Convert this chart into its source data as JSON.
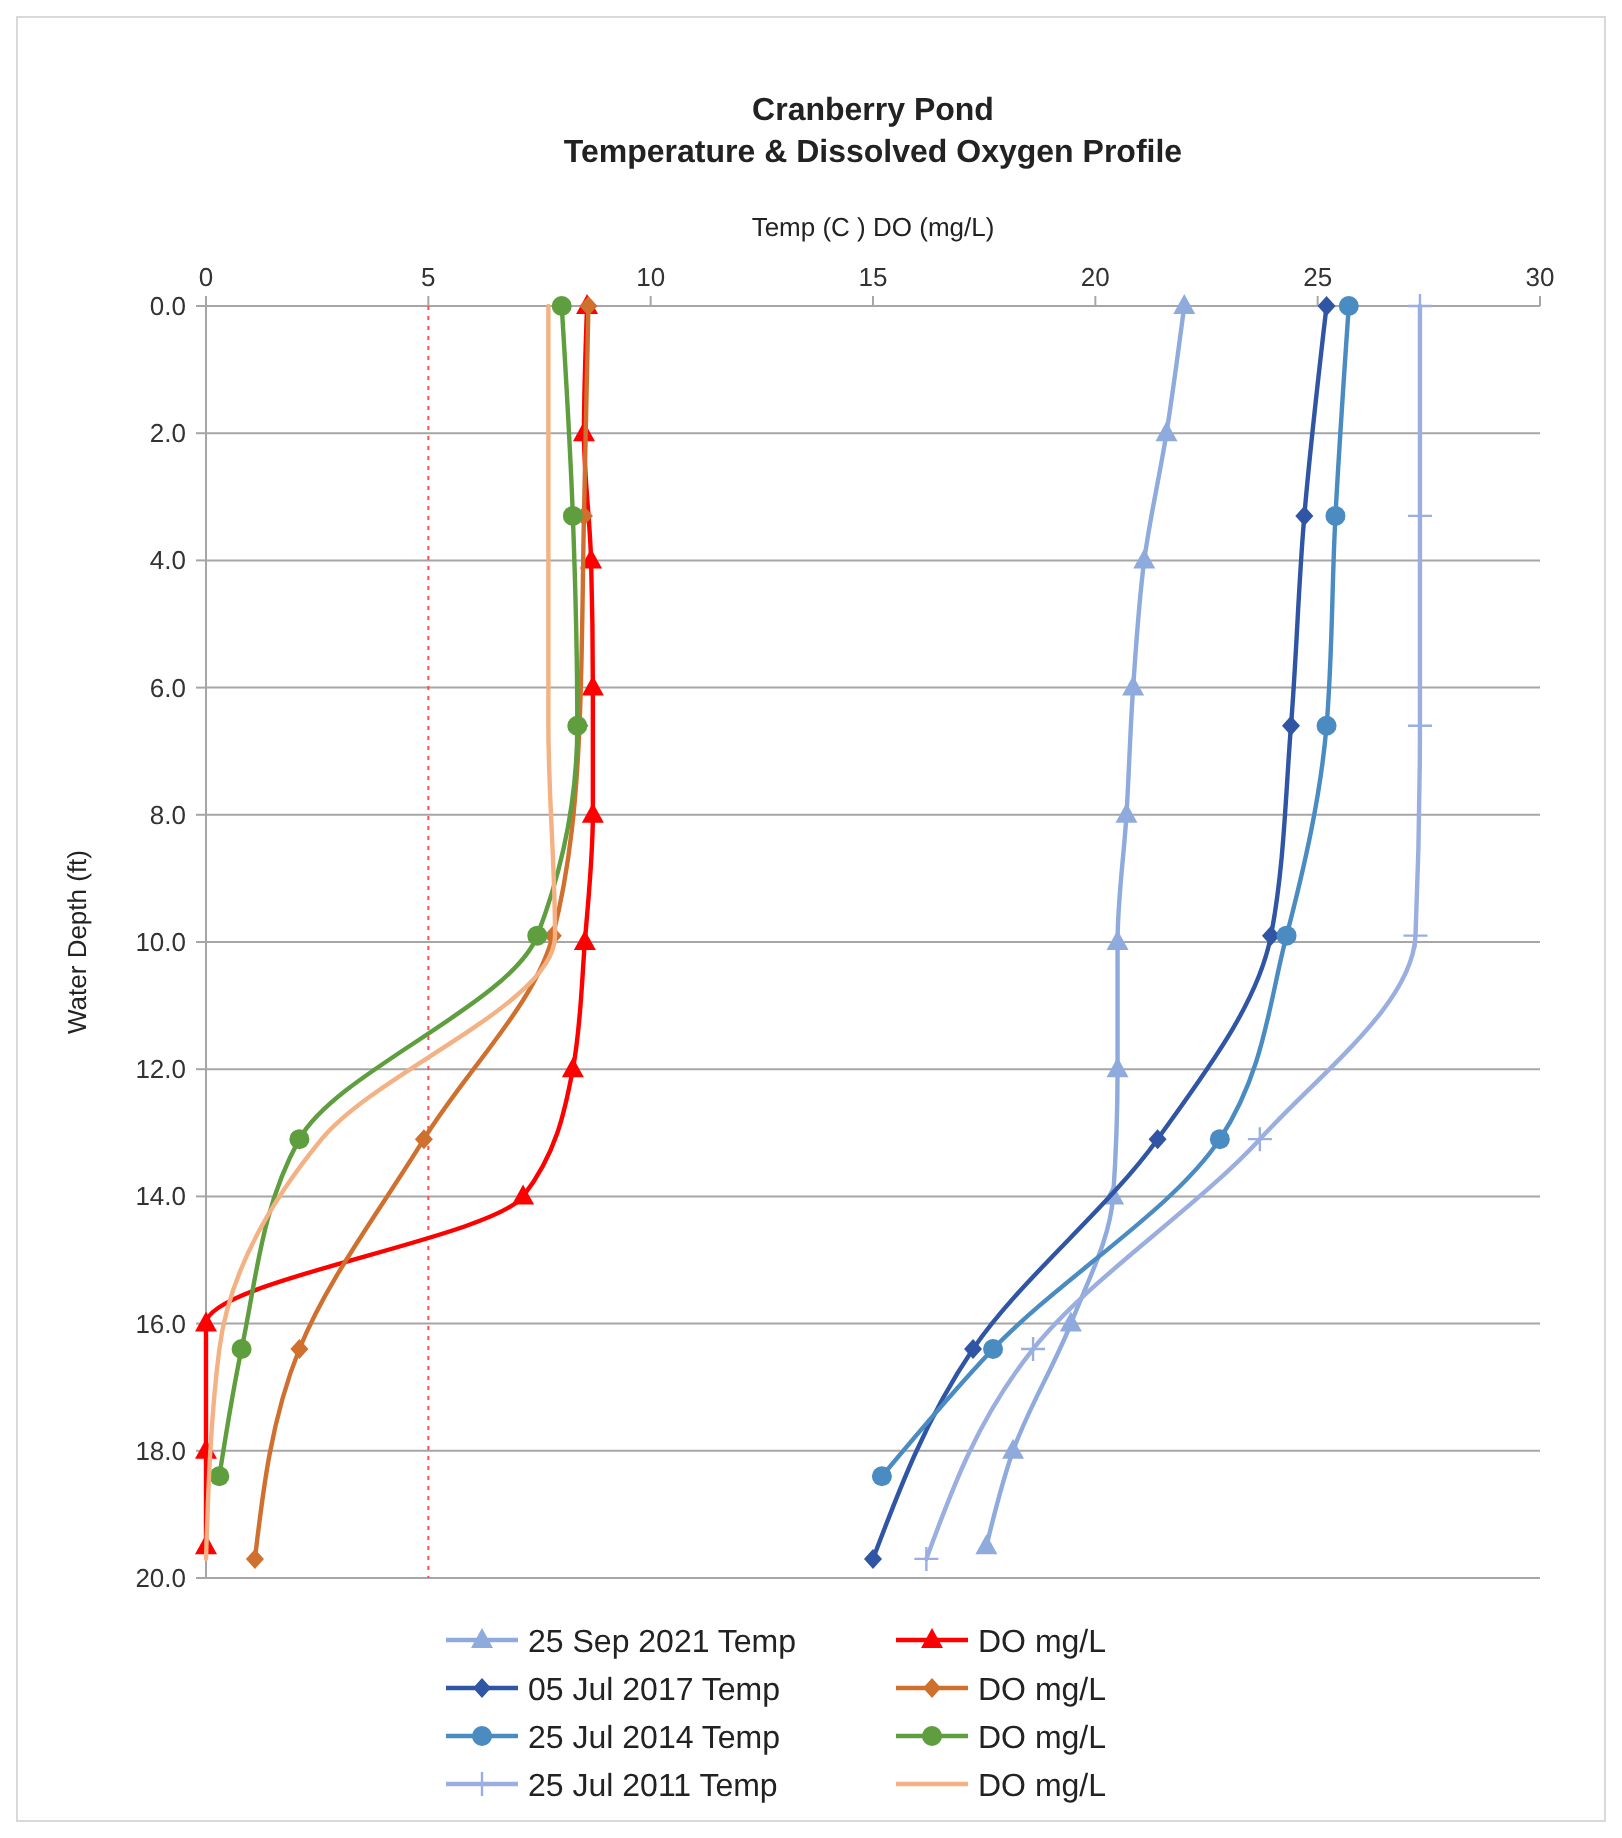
{
  "chart_data": {
    "type": "line",
    "title": "Cranberry Pond\nTemperature & Dissolved Oxygen Profile",
    "xlabel": "Temp (C )  DO (mg/L)",
    "ylabel": "Water Depth (ft)",
    "xlim": [
      0,
      30
    ],
    "xticks": [
      0,
      5,
      10,
      15,
      20,
      25,
      30
    ],
    "ylim": [
      20,
      0
    ],
    "yticks": [
      {
        "value": 0,
        "label": "0.0"
      },
      {
        "value": 2,
        "label": "2.0"
      },
      {
        "value": 4,
        "label": "4.0"
      },
      {
        "value": 6,
        "label": "6.0"
      },
      {
        "value": 8,
        "label": "8.0"
      },
      {
        "value": 10,
        "label": "10.0"
      },
      {
        "value": 12,
        "label": "12.0"
      },
      {
        "value": 14,
        "label": "14.0"
      },
      {
        "value": 16,
        "label": "16.0"
      },
      {
        "value": 18,
        "label": "18.0"
      },
      {
        "value": 20,
        "label": "20.0"
      }
    ],
    "grid": "y",
    "legend": "bottom",
    "ref_lines": [
      {
        "axis": "x",
        "value": 5,
        "color": "#ff5050",
        "line_style": "dotted"
      }
    ],
    "series": [
      {
        "name": "25 Sep 2021 Temp",
        "color": "#8faadc",
        "marker": "triangle",
        "x": [
          22.0,
          21.6,
          21.1,
          20.85,
          20.7,
          20.5,
          20.5,
          20.4,
          19.45,
          18.15,
          17.55
        ],
        "values": [
          0,
          2,
          4,
          6,
          8,
          10,
          12,
          14,
          16,
          18,
          19.5
        ]
      },
      {
        "name": "DO mg/L",
        "color": "#ff0000",
        "marker": "triangle",
        "x": [
          8.57,
          8.5,
          8.66,
          8.7,
          8.7,
          8.52,
          8.25,
          7.13,
          0.0,
          0.0,
          0.0
        ],
        "values": [
          0,
          2,
          4,
          6,
          8,
          10,
          12,
          14,
          16,
          18,
          19.5
        ]
      },
      {
        "name": "05 Jul 2017 Temp",
        "color": "#2f55a4",
        "marker": "diamond",
        "x": [
          25.2,
          24.7,
          24.4,
          23.95,
          21.4,
          17.25,
          15.0
        ],
        "values": [
          0,
          3.3,
          6.6,
          9.9,
          13.1,
          16.4,
          19.7
        ]
      },
      {
        "name": "DO mg/L",
        "color": "#d0702e",
        "marker": "diamond",
        "x": [
          8.6,
          8.5,
          8.4,
          7.8,
          4.9,
          2.1,
          1.1
        ],
        "values": [
          0,
          3.3,
          6.6,
          9.9,
          13.1,
          16.4,
          19.7
        ]
      },
      {
        "name": "25 Jul 2014 Temp",
        "color": "#4a8bc2",
        "marker": "circle",
        "x": [
          25.7,
          25.4,
          25.2,
          24.3,
          22.8,
          17.7,
          15.2
        ],
        "values": [
          0,
          3.3,
          6.6,
          9.9,
          13.1,
          16.4,
          18.4
        ]
      },
      {
        "name": "DO mg/L",
        "color": "#5f9e3e",
        "marker": "circle",
        "x": [
          8.0,
          8.25,
          8.35,
          7.45,
          2.1,
          0.8,
          0.3
        ],
        "values": [
          0,
          3.3,
          6.6,
          9.9,
          13.1,
          16.4,
          18.4
        ]
      },
      {
        "name": "25 Jul 2011 Temp",
        "color": "#9aaee0",
        "marker": "cross",
        "x": [
          27.3,
          27.3,
          27.3,
          27.2,
          23.7,
          18.6,
          16.2
        ],
        "values": [
          0,
          3.3,
          6.6,
          9.9,
          13.1,
          16.4,
          19.7
        ]
      },
      {
        "name": "DO mg/L",
        "color": "#f4b183",
        "marker": "none",
        "x": [
          7.7,
          7.7,
          7.7,
          7.85,
          2.6,
          0.3,
          0.0
        ],
        "values": [
          0,
          3.3,
          6.6,
          9.9,
          13.1,
          16.4,
          19.7
        ]
      }
    ]
  }
}
